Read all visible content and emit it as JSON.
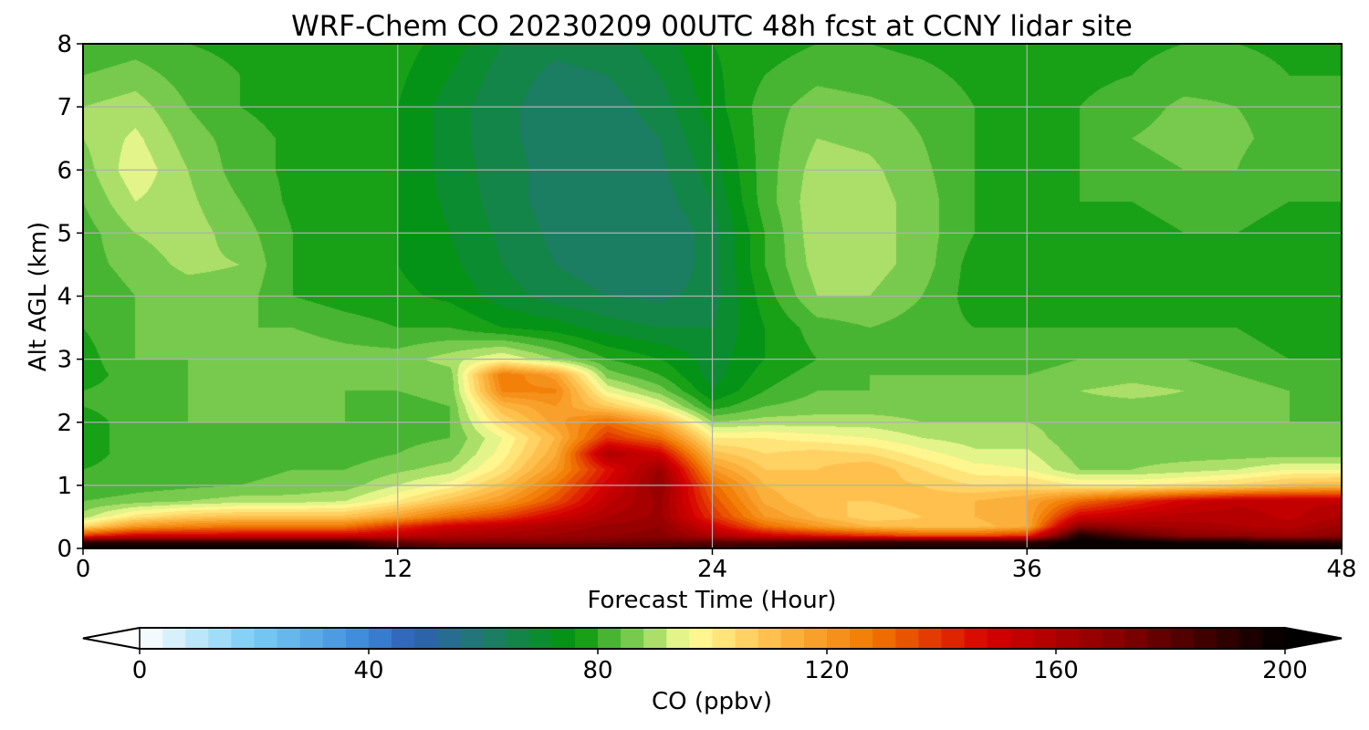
{
  "chart_data": {
    "type": "heatmap",
    "title": "WRF-Chem CO  20230209 00UTC 48h fcst at CCNY lidar site",
    "xlabel": "Forecast Time (Hour)",
    "ylabel": "Alt AGL (km)",
    "xlim": [
      0,
      48
    ],
    "ylim": [
      0,
      8
    ],
    "xticks": [
      0,
      12,
      24,
      36,
      48
    ],
    "yticks": [
      0,
      1,
      2,
      3,
      4,
      5,
      6,
      7,
      8
    ],
    "grid": true,
    "colorbar": {
      "label": "CO  (ppbv)",
      "orientation": "horizontal",
      "placement": "bottom",
      "range": [
        0,
        200
      ],
      "ticks": [
        0,
        40,
        80,
        120,
        160,
        200
      ],
      "extend": "both",
      "colors": [
        {
          "v": 0,
          "c": "#ffffff"
        },
        {
          "v": 20,
          "c": "#79cdf5"
        },
        {
          "v": 40,
          "c": "#3a86d8"
        },
        {
          "v": 48,
          "c": "#2f5fb3"
        },
        {
          "v": 60,
          "c": "#1f7a6f"
        },
        {
          "v": 76,
          "c": "#00960a"
        },
        {
          "v": 88,
          "c": "#8fd45a"
        },
        {
          "v": 96,
          "c": "#ffff9a"
        },
        {
          "v": 110,
          "c": "#ffc04d"
        },
        {
          "v": 128,
          "c": "#f07800"
        },
        {
          "v": 148,
          "c": "#d80000"
        },
        {
          "v": 170,
          "c": "#8a0000"
        },
        {
          "v": 200,
          "c": "#000000"
        }
      ]
    },
    "x_hours": [
      0,
      2,
      4,
      6,
      8,
      10,
      12,
      14,
      16,
      18,
      20,
      22,
      24,
      26,
      28,
      30,
      32,
      34,
      36,
      38,
      40,
      42,
      44,
      46,
      48
    ],
    "altitudes_km": [
      0,
      0.1,
      0.2,
      0.35,
      0.5,
      0.75,
      1,
      1.25,
      1.5,
      1.75,
      2,
      2.25,
      2.5,
      2.75,
      3,
      3.5,
      4,
      4.5,
      5,
      5.5,
      6,
      6.5,
      7,
      7.5,
      8
    ],
    "values_ppbv": [
      [
        200,
        200,
        200,
        200,
        200,
        200,
        190,
        185,
        185,
        185,
        185,
        185,
        190,
        190,
        195,
        195,
        195,
        195,
        195,
        200,
        200,
        200,
        200,
        200,
        200
      ],
      [
        190,
        190,
        190,
        190,
        190,
        190,
        178,
        172,
        172,
        172,
        175,
        178,
        180,
        182,
        185,
        188,
        190,
        190,
        190,
        200,
        200,
        195,
        195,
        190,
        190
      ],
      [
        140,
        150,
        150,
        150,
        150,
        150,
        155,
        160,
        162,
        165,
        168,
        170,
        160,
        150,
        145,
        140,
        135,
        135,
        140,
        195,
        180,
        170,
        168,
        165,
        170
      ],
      [
        104,
        120,
        125,
        128,
        128,
        128,
        140,
        150,
        155,
        160,
        165,
        168,
        150,
        130,
        120,
        112,
        110,
        110,
        115,
        170,
        165,
        162,
        160,
        158,
        165
      ],
      [
        90,
        102,
        108,
        110,
        110,
        110,
        118,
        130,
        138,
        150,
        160,
        165,
        140,
        120,
        112,
        105,
        108,
        112,
        116,
        150,
        155,
        158,
        158,
        155,
        160
      ],
      [
        84,
        86,
        88,
        90,
        90,
        92,
        100,
        110,
        120,
        135,
        155,
        165,
        135,
        115,
        108,
        108,
        110,
        112,
        116,
        130,
        140,
        150,
        155,
        155,
        155
      ],
      [
        80,
        82,
        83,
        84,
        85,
        86,
        92,
        98,
        110,
        128,
        150,
        168,
        130,
        112,
        108,
        110,
        108,
        104,
        105,
        100,
        100,
        102,
        105,
        110,
        112
      ],
      [
        80,
        82,
        82,
        83,
        84,
        84,
        87,
        90,
        102,
        120,
        145,
        165,
        120,
        108,
        108,
        112,
        104,
        98,
        96,
        88,
        88,
        90,
        92,
        96,
        96
      ],
      [
        78,
        82,
        82,
        82,
        83,
        82,
        84,
        86,
        98,
        115,
        160,
        150,
        110,
        104,
        106,
        104,
        98,
        93,
        93,
        86,
        86,
        86,
        86,
        86,
        86
      ],
      [
        78,
        82,
        83,
        83,
        84,
        83,
        83,
        84,
        96,
        112,
        140,
        130,
        100,
        100,
        98,
        96,
        92,
        90,
        90,
        85,
        85,
        85,
        85,
        85,
        85
      ],
      [
        78,
        82,
        84,
        84,
        84,
        84,
        83,
        84,
        104,
        118,
        130,
        115,
        88,
        90,
        90,
        90,
        88,
        88,
        88,
        86,
        86,
        86,
        85,
        84,
        84
      ],
      [
        80,
        82,
        84,
        84,
        84,
        84,
        83,
        84,
        112,
        120,
        108,
        96,
        78,
        84,
        86,
        86,
        86,
        86,
        86,
        87,
        87,
        87,
        86,
        84,
        82
      ],
      [
        80,
        82,
        84,
        84,
        85,
        84,
        84,
        85,
        125,
        125,
        95,
        86,
        72,
        80,
        84,
        84,
        84,
        84,
        86,
        88,
        89,
        88,
        86,
        84,
        82
      ],
      [
        78,
        82,
        84,
        85,
        86,
        85,
        84,
        86,
        128,
        118,
        86,
        80,
        70,
        78,
        82,
        84,
        84,
        84,
        84,
        86,
        87,
        86,
        84,
        82,
        80
      ],
      [
        78,
        84,
        84,
        86,
        87,
        86,
        86,
        90,
        96,
        88,
        80,
        76,
        70,
        76,
        80,
        82,
        82,
        82,
        82,
        84,
        84,
        84,
        82,
        80,
        80
      ],
      [
        80,
        84,
        84,
        84,
        84,
        82,
        80,
        80,
        76,
        74,
        70,
        68,
        68,
        76,
        82,
        84,
        82,
        80,
        80,
        80,
        80,
        80,
        80,
        78,
        78
      ],
      [
        80,
        84,
        86,
        86,
        80,
        78,
        77,
        75,
        70,
        66,
        64,
        63,
        66,
        78,
        88,
        88,
        84,
        78,
        77,
        78,
        78,
        78,
        78,
        78,
        78
      ],
      [
        82,
        86,
        89,
        88,
        80,
        77,
        76,
        73,
        68,
        64,
        62,
        60,
        66,
        80,
        90,
        90,
        86,
        78,
        76,
        78,
        78,
        78,
        78,
        78,
        78
      ],
      [
        82,
        88,
        90,
        86,
        80,
        77,
        76,
        72,
        67,
        63,
        60,
        60,
        66,
        80,
        91,
        90,
        86,
        80,
        78,
        78,
        78,
        80,
        80,
        78,
        80
      ],
      [
        84,
        92,
        89,
        84,
        79,
        77,
        76,
        71,
        66,
        62,
        60,
        62,
        68,
        82,
        91,
        90,
        86,
        80,
        78,
        80,
        80,
        82,
        82,
        80,
        80
      ],
      [
        86,
        95,
        88,
        82,
        79,
        77,
        76,
        70,
        66,
        62,
        60,
        63,
        70,
        82,
        90,
        89,
        85,
        80,
        78,
        80,
        82,
        84,
        84,
        80,
        80
      ],
      [
        88,
        93,
        86,
        82,
        79,
        77,
        76,
        70,
        65,
        62,
        61,
        64,
        72,
        82,
        88,
        87,
        84,
        80,
        78,
        80,
        84,
        86,
        85,
        82,
        80
      ],
      [
        88,
        90,
        84,
        80,
        78,
        77,
        76,
        70,
        65,
        62,
        62,
        66,
        74,
        82,
        86,
        85,
        83,
        80,
        78,
        80,
        82,
        85,
        84,
        82,
        80
      ],
      [
        84,
        86,
        82,
        80,
        78,
        78,
        77,
        72,
        66,
        63,
        64,
        68,
        75,
        80,
        83,
        82,
        81,
        79,
        78,
        79,
        80,
        82,
        82,
        80,
        80
      ],
      [
        80,
        82,
        80,
        79,
        78,
        78,
        78,
        74,
        68,
        65,
        66,
        70,
        76,
        78,
        80,
        80,
        79,
        78,
        78,
        78,
        79,
        80,
        80,
        79,
        78
      ]
    ]
  }
}
